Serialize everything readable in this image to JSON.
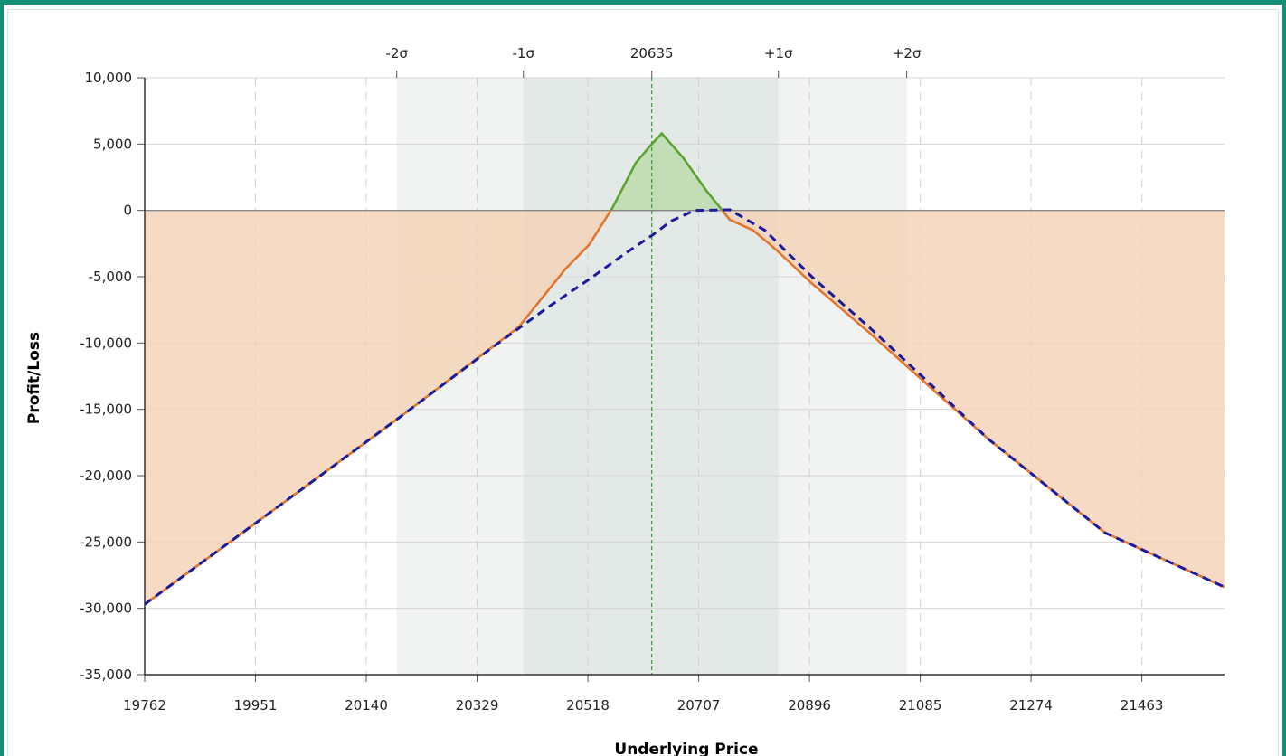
{
  "chart_data": {
    "type": "line",
    "title": "",
    "xlabel": "Underlying Price",
    "ylabel": "Profit/Loss",
    "xlim": [
      19762,
      21604
    ],
    "ylim": [
      -35000,
      10000
    ],
    "x_ticks": [
      19762,
      19951,
      20140,
      20329,
      20518,
      20707,
      20896,
      21085,
      21274,
      21463
    ],
    "y_ticks": [
      10000,
      5000,
      0,
      -5000,
      -10000,
      -15000,
      -20000,
      -25000,
      -30000,
      -35000
    ],
    "y_tick_labels": [
      "10,000",
      "5,000",
      "0",
      "-5,000",
      "-10,000",
      "-15,000",
      "-20,000",
      "-25,000",
      "-30,000",
      "-35,000"
    ],
    "top_markers": [
      {
        "label": "-2σ",
        "x": 20192
      },
      {
        "label": "-1σ",
        "x": 20408
      },
      {
        "label": "20635",
        "x": 20627
      },
      {
        "label": "+1σ",
        "x": 20843
      },
      {
        "label": "+2σ",
        "x": 21062
      }
    ],
    "bands": [
      {
        "name": "2-sigma",
        "from": 20192,
        "to": 21062,
        "color": "#f1f3f2"
      },
      {
        "name": "1-sigma",
        "from": 20408,
        "to": 20843,
        "color": "#e3e9e7"
      }
    ],
    "grid": true,
    "series": [
      {
        "style": "solid",
        "color_loss": "#e0762f",
        "color_profit": "#5ba52f",
        "fill_loss": "#f5d3b8",
        "fill_profit": "#bfddb0",
        "x": [
          19762,
          20000,
          20200,
          20400,
          20480,
          20520,
          20560,
          20600,
          20627,
          20644,
          20680,
          20720,
          20760,
          20800,
          20840,
          20900,
          21000,
          21200,
          21400,
          21604
        ],
        "y": [
          -29700,
          -22000,
          -15500,
          -8800,
          -4400,
          -2600,
          200,
          3600,
          5000,
          5800,
          4000,
          1500,
          -700,
          -1500,
          -3000,
          -5500,
          -9300,
          -17200,
          -24300,
          -28400
        ]
      },
      {
        "style": "dashed",
        "color": "#1b1b9c",
        "x": [
          19762,
          20000,
          20200,
          20350,
          20450,
          20520,
          20580,
          20627,
          20660,
          20700,
          20760,
          20820,
          20900,
          21000,
          21100,
          21200,
          21400,
          21604
        ],
        "y": [
          -29700,
          -22000,
          -15500,
          -10500,
          -7300,
          -5200,
          -3300,
          -1900,
          -800,
          0,
          50,
          -1500,
          -5000,
          -8900,
          -13000,
          -17200,
          -24300,
          -28400
        ]
      }
    ],
    "center_marker_x": 20627
  }
}
